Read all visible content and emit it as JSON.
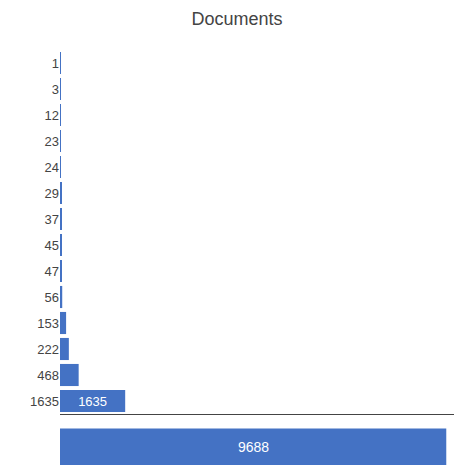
{
  "chart_data": {
    "type": "bar",
    "title": "Documents",
    "orientation": "horizontal",
    "categories": [
      "1",
      "3",
      "12",
      "23",
      "24",
      "29",
      "37",
      "45",
      "47",
      "56",
      "153",
      "222",
      "468",
      "1635"
    ],
    "values": [
      1,
      3,
      12,
      23,
      24,
      29,
      37,
      45,
      47,
      56,
      153,
      222,
      468,
      1635
    ],
    "value_labels": [
      null,
      null,
      null,
      null,
      null,
      null,
      null,
      null,
      null,
      null,
      null,
      null,
      null,
      "1635"
    ],
    "total": 9688,
    "color": "#4472C4",
    "xlim": [
      0,
      9881.76
    ],
    "grid": false,
    "tick_labels": "y"
  }
}
